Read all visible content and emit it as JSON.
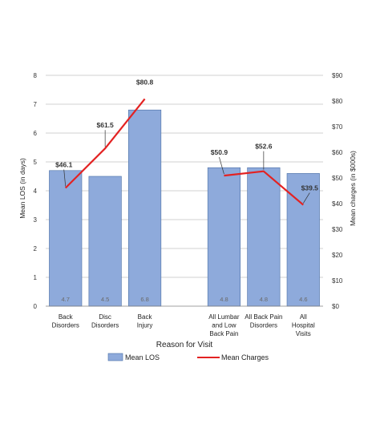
{
  "chart_data": {
    "type": "bar",
    "categories": [
      [
        "Back",
        "Disorders"
      ],
      [
        "Disc",
        "Disorders"
      ],
      [
        "Back",
        "Injury"
      ],
      [
        "All Lumbar",
        "and Low",
        "Back Pain"
      ],
      [
        "All Back Pain",
        "Disorders"
      ],
      [
        "All",
        "Hospital",
        "Visits"
      ]
    ],
    "gap_after_index": 2,
    "series": [
      {
        "name": "Mean LOS",
        "kind": "bar",
        "axis": "left",
        "color": "#8eaadb",
        "values": [
          4.7,
          4.5,
          6.8,
          4.8,
          4.8,
          4.6
        ],
        "labels": [
          "4.7",
          "4.5",
          "6.8",
          "4.8",
          "4.8",
          "4.6"
        ]
      },
      {
        "name": "Mean Charges",
        "kind": "line",
        "axis": "right",
        "color": "#e32222",
        "values": [
          46.1,
          61.5,
          80.8,
          50.9,
          52.6,
          39.5
        ],
        "labels": [
          "$46.1",
          "$61.5",
          "$80.8",
          "$50.9",
          "$52.6",
          "$39.5"
        ]
      }
    ],
    "xlabel": "Reason for Visit",
    "ylabel": "Mean LOS (in days)",
    "y2label": "Mean charges (in $000s)",
    "ylim": [
      0,
      8
    ],
    "y2lim": [
      0,
      90
    ],
    "yticks": [
      "0",
      "1",
      "2",
      "3",
      "4",
      "5",
      "6",
      "7",
      "8"
    ],
    "y2ticks": [
      "$0",
      "$10",
      "$20",
      "$30",
      "$40",
      "$50",
      "$60",
      "$70",
      "$80",
      "$90"
    ],
    "grid": true,
    "legend_position": "bottom"
  }
}
